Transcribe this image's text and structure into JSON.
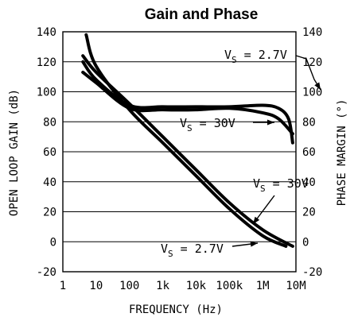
{
  "chart_data": {
    "type": "line",
    "title": "Gain and Phase",
    "xlabel": "FREQUENCY (Hz)",
    "ylabel_left": "OPEN LOOP GAIN (dB)",
    "ylabel_right": "PHASE MARGIN (°)",
    "x_scale": "log",
    "xlim": [
      1,
      10000000
    ],
    "ylim": [
      -20,
      140
    ],
    "x_ticks": [
      {
        "value": 1,
        "label": "1"
      },
      {
        "value": 10,
        "label": "10"
      },
      {
        "value": 100,
        "label": "100"
      },
      {
        "value": 1000,
        "label": "1k"
      },
      {
        "value": 10000,
        "label": "10k"
      },
      {
        "value": 100000,
        "label": "100k"
      },
      {
        "value": 1000000,
        "label": "1M"
      },
      {
        "value": 10000000,
        "label": "10M"
      }
    ],
    "y_ticks_left": [
      "140",
      "120",
      "100",
      "80",
      "60",
      "40",
      "20",
      "0",
      "-20"
    ],
    "y_ticks_right": [
      "140",
      "120",
      "100",
      "80",
      "60",
      "40",
      "20",
      "0",
      "-20"
    ],
    "y_tick_values": [
      140,
      120,
      100,
      80,
      60,
      40,
      20,
      0,
      -20
    ],
    "grid": "horizontal",
    "series": [
      {
        "key": "gain_2v7",
        "axis": "left",
        "x": [
          5,
          10,
          100,
          1000,
          10000,
          100000,
          1000000,
          5000000
        ],
        "y": [
          138,
          117,
          88,
          66,
          44,
          22,
          4,
          -3
        ]
      },
      {
        "key": "gain_30v",
        "axis": "left",
        "x": [
          4,
          10,
          100,
          1000,
          10000,
          100000,
          1000000,
          8000000
        ],
        "y": [
          124,
          113,
          92,
          70,
          48,
          26,
          8,
          -3
        ]
      },
      {
        "key": "phase_2v7",
        "axis": "right",
        "x": [
          4,
          10,
          100,
          1000,
          10000,
          100000,
          1000000,
          3000000,
          6000000,
          8000000
        ],
        "y": [
          120,
          108,
          91,
          90,
          90,
          90,
          91,
          89,
          82,
          66
        ]
      },
      {
        "key": "phase_30v",
        "axis": "right",
        "x": [
          4,
          10,
          100,
          1000,
          10000,
          100000,
          1000000,
          3000000,
          8000000
        ],
        "y": [
          113,
          106,
          89,
          88,
          88,
          89,
          86,
          82,
          72
        ]
      }
    ],
    "annotations": [
      {
        "key": "phase_2v7",
        "main": "V",
        "sub": "S",
        "rest": " = 2.7V"
      },
      {
        "key": "phase_30v",
        "main": "V",
        "sub": "S",
        "rest": " = 30V"
      },
      {
        "key": "gain_30v",
        "main": "V",
        "sub": "S",
        "rest": " = 30V"
      },
      {
        "key": "gain_2v7",
        "main": "V",
        "sub": "S",
        "rest": " = 2.7V"
      }
    ]
  }
}
